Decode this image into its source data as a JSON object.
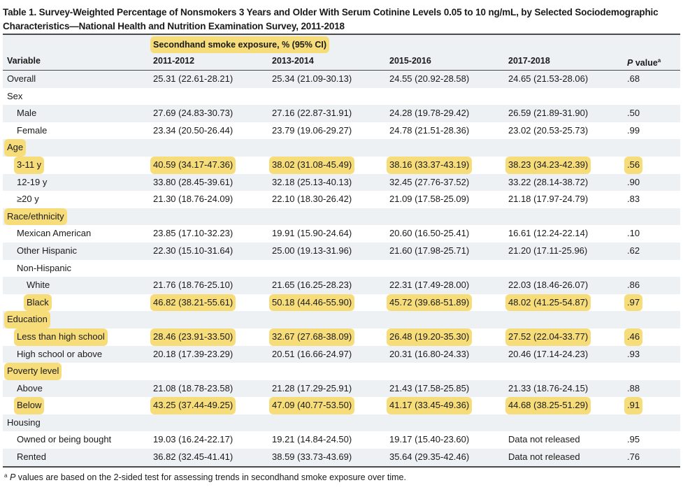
{
  "title": "Table 1. Survey-Weighted Percentage of Nonsmokers 3 Years and Older With Serum Cotinine Levels 0.05 to 10 ng/mL, by Selected Sociodemographic Characteristics—National Health and Nutrition Examination Survey, 2011-2018",
  "header": {
    "group_label": "Secondhand smoke exposure, % (95% CI)",
    "variable": "Variable",
    "years": [
      "2011-2012",
      "2013-2014",
      "2015-2016",
      "2017-2018"
    ],
    "pvalue_p": "P",
    "pvalue_rest": " value",
    "pvalue_sup": "a"
  },
  "highlight_color": "#f7dd7a",
  "rows": [
    {
      "label": "Overall",
      "indent": 0,
      "hl": false,
      "values": [
        "25.31 (22.61-28.21)",
        "25.34 (21.09-30.13)",
        "24.55 (20.92-28.58)",
        "24.65 (21.53-28.06)"
      ],
      "p": ".68"
    },
    {
      "label": "Sex",
      "indent": 0,
      "hl": false,
      "values": [
        "",
        "",
        "",
        ""
      ],
      "p": ""
    },
    {
      "label": "Male",
      "indent": 1,
      "hl": false,
      "values": [
        "27.69 (24.83-30.73)",
        "27.16 (22.87-31.91)",
        "24.28 (19.78-29.42)",
        "26.59 (21.89-31.90)"
      ],
      "p": ".50"
    },
    {
      "label": "Female",
      "indent": 1,
      "hl": false,
      "values": [
        "23.34 (20.50-26.44)",
        "23.79 (19.06-29.27)",
        "24.78 (21.51-28.36)",
        "23.02 (20.53-25.73)"
      ],
      "p": ".99"
    },
    {
      "label": "Age",
      "indent": 0,
      "hl": true,
      "values": [
        "",
        "",
        "",
        ""
      ],
      "p": ""
    },
    {
      "label": "3-11 y",
      "indent": 1,
      "hl": true,
      "values": [
        "40.59 (34.17-47.36)",
        "38.02 (31.08-45.49)",
        "38.16 (33.37-43.19)",
        "38.23 (34.23-42.39)"
      ],
      "p": ".56"
    },
    {
      "label": "12-19 y",
      "indent": 1,
      "hl": false,
      "values": [
        "33.80 (28.45-39.61)",
        "32.18 (25.13-40.13)",
        "32.45 (27.76-37.52)",
        "33.22 (28.14-38.72)"
      ],
      "p": ".90"
    },
    {
      "label": "≥20 y",
      "indent": 1,
      "hl": false,
      "values": [
        "21.30 (18.76-24.09)",
        "22.10 (18.30-26.42)",
        "21.09 (17.58-25.09)",
        "21.18 (17.97-24.79)"
      ],
      "p": ".83"
    },
    {
      "label": "Race/ethnicity",
      "indent": 0,
      "hl": true,
      "values": [
        "",
        "",
        "",
        ""
      ],
      "p": ""
    },
    {
      "label": "Mexican American",
      "indent": 1,
      "hl": false,
      "values": [
        "23.85 (17.10-32.23)",
        "19.91 (15.90-24.64)",
        "20.60 (16.50-25.41)",
        "16.61 (12.24-22.14)"
      ],
      "p": ".10"
    },
    {
      "label": "Other Hispanic",
      "indent": 1,
      "hl": false,
      "values": [
        "22.30 (15.10-31.64)",
        "25.00 (19.13-31.96)",
        "21.60 (17.98-25.71)",
        "21.20 (17.11-25.96)"
      ],
      "p": ".62"
    },
    {
      "label": "Non-Hispanic",
      "indent": 1,
      "hl": false,
      "values": [
        "",
        "",
        "",
        ""
      ],
      "p": ""
    },
    {
      "label": "White",
      "indent": 2,
      "hl": false,
      "values": [
        "21.76 (18.76-25.10)",
        "21.65 (16.25-28.23)",
        "22.31 (17.49-28.00)",
        "22.03 (18.46-26.07)"
      ],
      "p": ".86"
    },
    {
      "label": "Black",
      "indent": 2,
      "hl": true,
      "values": [
        "46.82 (38.21-55.61)",
        "50.18 (44.46-55.90)",
        "45.72 (39.68-51.89)",
        "48.02 (41.25-54.87)"
      ],
      "p": ".97"
    },
    {
      "label": "Education",
      "indent": 0,
      "hl": true,
      "values": [
        "",
        "",
        "",
        ""
      ],
      "p": ""
    },
    {
      "label": "Less than high school",
      "indent": 1,
      "hl": true,
      "values": [
        "28.46 (23.91-33.50)",
        "32.67 (27.68-38.09)",
        "26.48 (19.20-35.30)",
        "27.52 (22.04-33.77)"
      ],
      "p": ".46"
    },
    {
      "label": "High school or above",
      "indent": 1,
      "hl": false,
      "values": [
        "20.18 (17.39-23.29)",
        "20.51 (16.66-24.97)",
        "20.31 (16.80-24.33)",
        "20.46 (17.14-24.23)"
      ],
      "p": ".93"
    },
    {
      "label": "Poverty level",
      "indent": 0,
      "hl": true,
      "values": [
        "",
        "",
        "",
        ""
      ],
      "p": ""
    },
    {
      "label": "Above",
      "indent": 1,
      "hl": false,
      "values": [
        "21.08 (18.78-23.58)",
        "21.28 (17.29-25.91)",
        "21.43 (17.58-25.85)",
        "21.33 (18.76-24.15)"
      ],
      "p": ".88"
    },
    {
      "label": "Below",
      "indent": 1,
      "hl": true,
      "values": [
        "43.25 (37.44-49.25)",
        "47.09 (40.77-53.50)",
        "41.17 (33.45-49.36)",
        "44.68 (38.25-51.29)"
      ],
      "p": ".91"
    },
    {
      "label": "Housing",
      "indent": 0,
      "hl": false,
      "values": [
        "",
        "",
        "",
        ""
      ],
      "p": ""
    },
    {
      "label": "Owned or being bought",
      "indent": 1,
      "hl": false,
      "values": [
        "19.03 (16.24-22.17)",
        "19.21 (14.84-24.50)",
        "19.17 (15.40-23.60)",
        "Data not released"
      ],
      "p": ".95"
    },
    {
      "label": "Rented",
      "indent": 1,
      "hl": false,
      "values": [
        "36.82 (32.45-41.41)",
        "38.59 (33.73-43.69)",
        "35.64 (29.35-42.46)",
        "Data not released"
      ],
      "p": ".76"
    }
  ],
  "footnote": {
    "sup": "a",
    "p": "P",
    "text": " values are based on the 2-sided test for assessing trends in secondhand smoke exposure over time."
  }
}
